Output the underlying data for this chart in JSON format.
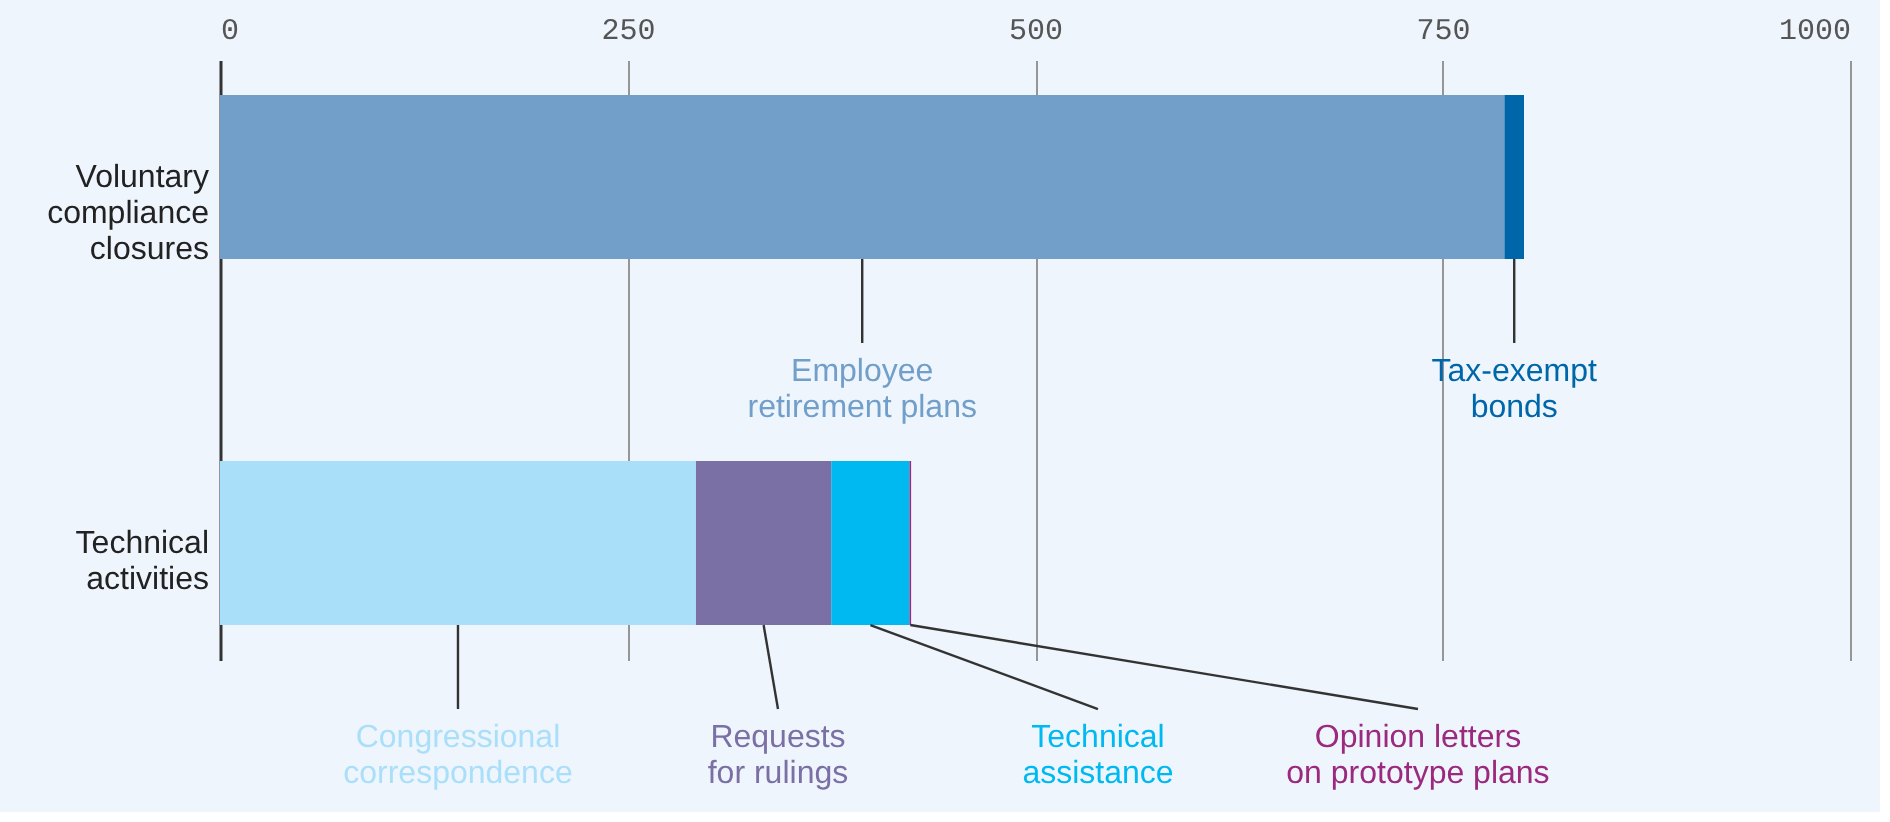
{
  "chart_data": {
    "type": "bar",
    "orientation": "horizontal",
    "stacked": true,
    "categories": [
      "Voluntary compliance closures",
      "Technical activities"
    ],
    "series": [
      {
        "name": "Employee retirement plans",
        "color": "#729fc9",
        "values": [
          788,
          null
        ]
      },
      {
        "name": "Tax-exempt bonds",
        "color": "#0066aa",
        "values": [
          12,
          null
        ]
      },
      {
        "name": "Congressional correspondence",
        "color": "#aadffa",
        "values": [
          null,
          292
        ]
      },
      {
        "name": "Requests for rulings",
        "color": "#7a70a6",
        "values": [
          null,
          83
        ]
      },
      {
        "name": "Technical assistance",
        "color": "#00b9f1",
        "values": [
          null,
          48
        ]
      },
      {
        "name": "Opinion letters on prototype plans",
        "color": "#9b2a7f",
        "values": [
          null,
          1
        ]
      }
    ],
    "xlim": [
      0,
      1000
    ],
    "xticks": [
      0,
      250,
      500,
      750,
      {
        "value": 1000,
        "label": "1000"
      }
    ],
    "grid": "x"
  }
}
